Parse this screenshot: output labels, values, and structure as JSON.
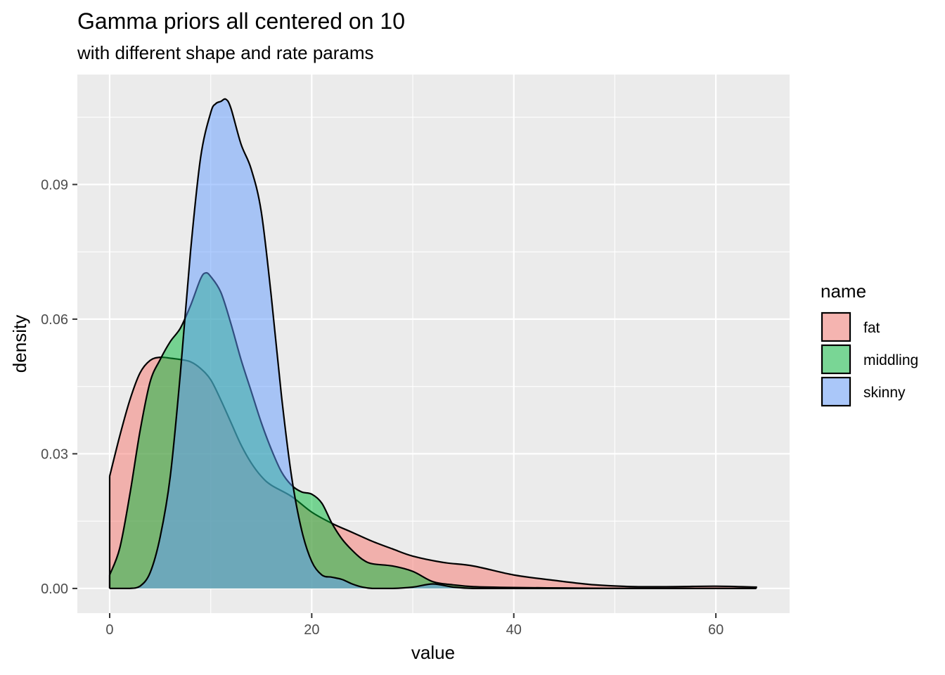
{
  "chart_data": {
    "type": "area",
    "title": "Gamma priors all centered on 10",
    "subtitle": "with different shape and rate params",
    "xlabel": "value",
    "ylabel": "density",
    "xlim": [
      -3.2,
      67.3
    ],
    "ylim": [
      -0.0055,
      0.1145
    ],
    "x_ticks": [
      0,
      20,
      40,
      60
    ],
    "x_tick_labels": [
      "0",
      "20",
      "40",
      "60"
    ],
    "y_ticks": [
      0.0,
      0.03,
      0.06,
      0.09
    ],
    "y_tick_labels": [
      "0.00",
      "0.03",
      "0.06",
      "0.09"
    ],
    "grid": true,
    "legend_title": "name",
    "legend_position": "right",
    "fill_alpha": 0.5,
    "series": [
      {
        "name": "fat",
        "color": "#F8766D",
        "x": [
          0,
          1,
          2,
          3,
          4,
          5,
          6,
          7,
          8,
          9,
          10,
          11,
          12,
          13,
          14,
          15,
          16,
          18,
          20,
          22,
          24,
          26,
          28,
          30,
          33,
          36,
          40,
          44,
          48,
          52,
          56,
          60,
          64
        ],
        "y": [
          0.025,
          0.034,
          0.042,
          0.048,
          0.0508,
          0.0515,
          0.0513,
          0.051,
          0.0505,
          0.049,
          0.0465,
          0.042,
          0.037,
          0.032,
          0.028,
          0.025,
          0.023,
          0.0205,
          0.017,
          0.0145,
          0.0125,
          0.0105,
          0.0088,
          0.0072,
          0.0058,
          0.005,
          0.003,
          0.0018,
          0.0008,
          0.0004,
          0.0004,
          0.0005,
          0.0003
        ]
      },
      {
        "name": "middling",
        "color": "#00BA38",
        "x": [
          0,
          1,
          2,
          3,
          4,
          5,
          6,
          7,
          8,
          9,
          9.5,
          10,
          11,
          12,
          13,
          14,
          15,
          16,
          17,
          18,
          19,
          20,
          21,
          22,
          23,
          24,
          25,
          26,
          28,
          30,
          32,
          34,
          36,
          40,
          45,
          50,
          55,
          60,
          64
        ],
        "y": [
          0.003,
          0.009,
          0.021,
          0.035,
          0.046,
          0.051,
          0.055,
          0.058,
          0.063,
          0.069,
          0.0703,
          0.0695,
          0.066,
          0.059,
          0.051,
          0.044,
          0.037,
          0.031,
          0.026,
          0.023,
          0.0215,
          0.021,
          0.019,
          0.0145,
          0.011,
          0.0085,
          0.0065,
          0.0055,
          0.005,
          0.0038,
          0.0015,
          0.0008,
          0.0004,
          0.0002,
          0.0001,
          0.0,
          0.0,
          0.0,
          0.0
        ]
      },
      {
        "name": "skinny",
        "color": "#619CFF",
        "x": [
          0,
          1,
          2,
          3,
          4,
          5,
          6,
          7,
          8,
          9,
          10,
          10.5,
          11,
          11.5,
          12,
          13,
          14,
          15,
          16,
          17,
          18,
          19,
          20,
          21,
          22,
          23,
          24,
          25,
          26,
          28,
          30,
          32,
          34,
          36,
          40,
          50,
          64
        ],
        "y": [
          0.0,
          0.0,
          0.0,
          0.0005,
          0.0035,
          0.0115,
          0.025,
          0.048,
          0.075,
          0.096,
          0.106,
          0.108,
          0.1085,
          0.109,
          0.107,
          0.099,
          0.0935,
          0.084,
          0.065,
          0.043,
          0.025,
          0.013,
          0.006,
          0.003,
          0.0025,
          0.002,
          0.001,
          0.0003,
          0.0,
          0.0,
          0.0003,
          0.001,
          0.0003,
          0.0,
          0.0,
          0.0,
          0.0
        ]
      }
    ]
  }
}
